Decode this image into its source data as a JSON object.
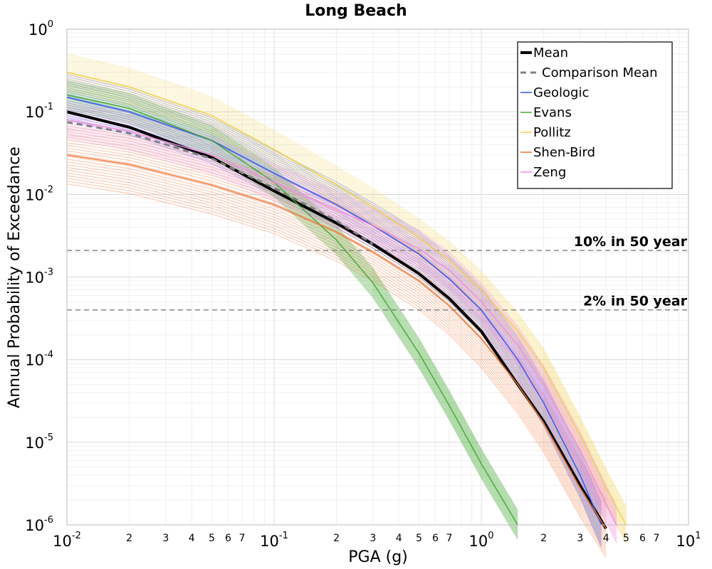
{
  "chart_data": {
    "type": "line",
    "title": "Long Beach",
    "xlabel": "PGA (g)",
    "ylabel": "Annual Probability of Exceedance",
    "xscale": "log",
    "yscale": "log",
    "xlim": [
      0.01,
      10
    ],
    "ylim": [
      1e-06,
      1
    ],
    "grid": true,
    "legend_position": "top-right",
    "x_ticks": [
      {
        "value": 0.01,
        "base": "10",
        "exp": "-2"
      },
      {
        "value": 0.1,
        "base": "10",
        "exp": "-1"
      },
      {
        "value": 1,
        "base": "10",
        "exp": "0"
      },
      {
        "value": 10,
        "base": "10",
        "exp": "1"
      }
    ],
    "y_ticks": [
      {
        "value": 1,
        "base": "10",
        "exp": "0"
      },
      {
        "value": 0.1,
        "base": "10",
        "exp": "-1"
      },
      {
        "value": 0.01,
        "base": "10",
        "exp": "-2"
      },
      {
        "value": 0.001,
        "base": "10",
        "exp": "-3"
      },
      {
        "value": 0.0001,
        "base": "10",
        "exp": "-4"
      },
      {
        "value": 1e-05,
        "base": "10",
        "exp": "-5"
      },
      {
        "value": 1e-06,
        "base": "10",
        "exp": "-6"
      }
    ],
    "x_minor_labels": [
      {
        "value": 0.02,
        "label": "2"
      },
      {
        "value": 0.03,
        "label": "3"
      },
      {
        "value": 0.04,
        "label": "4"
      },
      {
        "value": 0.05,
        "label": "5"
      },
      {
        "value": 0.06,
        "label": "6"
      },
      {
        "value": 0.07,
        "label": "7"
      },
      {
        "value": 0.2,
        "label": "2"
      },
      {
        "value": 0.3,
        "label": "3"
      },
      {
        "value": 0.4,
        "label": "4"
      },
      {
        "value": 0.5,
        "label": "5"
      },
      {
        "value": 0.6,
        "label": "6"
      },
      {
        "value": 0.7,
        "label": "7"
      },
      {
        "value": 2,
        "label": "2"
      },
      {
        "value": 3,
        "label": "3"
      },
      {
        "value": 4,
        "label": "4"
      },
      {
        "value": 5,
        "label": "5"
      },
      {
        "value": 6,
        "label": "6"
      },
      {
        "value": 7,
        "label": "7"
      }
    ],
    "reference_lines": [
      {
        "label": "10% in 50 year",
        "y": 0.0021,
        "color": "#888888"
      },
      {
        "label": "2% in 50 year",
        "y": 0.0004,
        "color": "#888888"
      }
    ],
    "series": [
      {
        "name": "Mean",
        "color": "#000000",
        "style": "solid-thick",
        "x": [
          0.01,
          0.02,
          0.05,
          0.1,
          0.2,
          0.3,
          0.5,
          0.7,
          1.0,
          1.5,
          2.0,
          3.0,
          4.0
        ],
        "y": [
          0.1,
          0.065,
          0.028,
          0.011,
          0.0045,
          0.0025,
          0.0011,
          0.00055,
          0.00022,
          5e-05,
          1.8e-05,
          3e-06,
          9e-07
        ]
      },
      {
        "name": "Comparison Mean",
        "color": "#808080",
        "style": "dashed",
        "x": [
          0.01,
          0.02,
          0.05,
          0.1,
          0.2,
          0.3
        ],
        "y": [
          0.075,
          0.055,
          0.027,
          0.012,
          0.0048,
          0.0025
        ]
      },
      {
        "name": "Geologic",
        "color": "#3355ee",
        "x": [
          0.01,
          0.02,
          0.05,
          0.1,
          0.2,
          0.3,
          0.5,
          0.7,
          1.0,
          1.5,
          2.0,
          3.0,
          3.8
        ],
        "y": [
          0.15,
          0.1,
          0.045,
          0.018,
          0.0075,
          0.0042,
          0.0019,
          0.00095,
          0.0004,
          0.0001,
          3e-05,
          4e-06,
          1e-06
        ]
      },
      {
        "name": "Evans",
        "color": "#44aa33",
        "x": [
          0.01,
          0.02,
          0.05,
          0.1,
          0.2,
          0.3,
          0.5,
          0.7,
          1.0,
          1.5
        ],
        "y": [
          0.16,
          0.11,
          0.045,
          0.014,
          0.0028,
          0.00085,
          0.00012,
          2.8e-05,
          5.5e-06,
          1e-06
        ]
      },
      {
        "name": "Pollitz",
        "color": "#f0d050",
        "x": [
          0.01,
          0.02,
          0.05,
          0.1,
          0.2,
          0.3,
          0.5,
          0.7,
          1.0,
          1.5,
          2.0,
          3.0,
          4.0,
          5.0
        ],
        "y": [
          0.3,
          0.2,
          0.09,
          0.035,
          0.013,
          0.007,
          0.003,
          0.0016,
          0.0007,
          0.00022,
          8e-05,
          1.2e-05,
          2.8e-06,
          1e-06
        ]
      },
      {
        "name": "Shen-Bird",
        "color": "#f07030",
        "x": [
          0.01,
          0.02,
          0.05,
          0.1,
          0.2,
          0.3,
          0.5,
          0.7,
          1.0,
          1.5,
          2.0,
          3.0,
          4.0
        ],
        "y": [
          0.03,
          0.023,
          0.013,
          0.0075,
          0.0035,
          0.002,
          0.0009,
          0.00045,
          0.00018,
          5e-05,
          1.7e-05,
          2.8e-06,
          9e-07
        ]
      },
      {
        "name": "Zeng",
        "color": "#f090e0",
        "x": [
          0.01,
          0.02,
          0.05,
          0.1,
          0.2,
          0.3,
          0.5,
          0.7,
          1.0,
          1.5,
          2.0,
          3.0,
          4.0,
          4.5
        ],
        "y": [
          0.08,
          0.058,
          0.03,
          0.014,
          0.0065,
          0.0042,
          0.0022,
          0.0012,
          0.0005,
          0.00015,
          5e-05,
          8e-06,
          1.8e-06,
          1e-06
        ]
      }
    ]
  }
}
